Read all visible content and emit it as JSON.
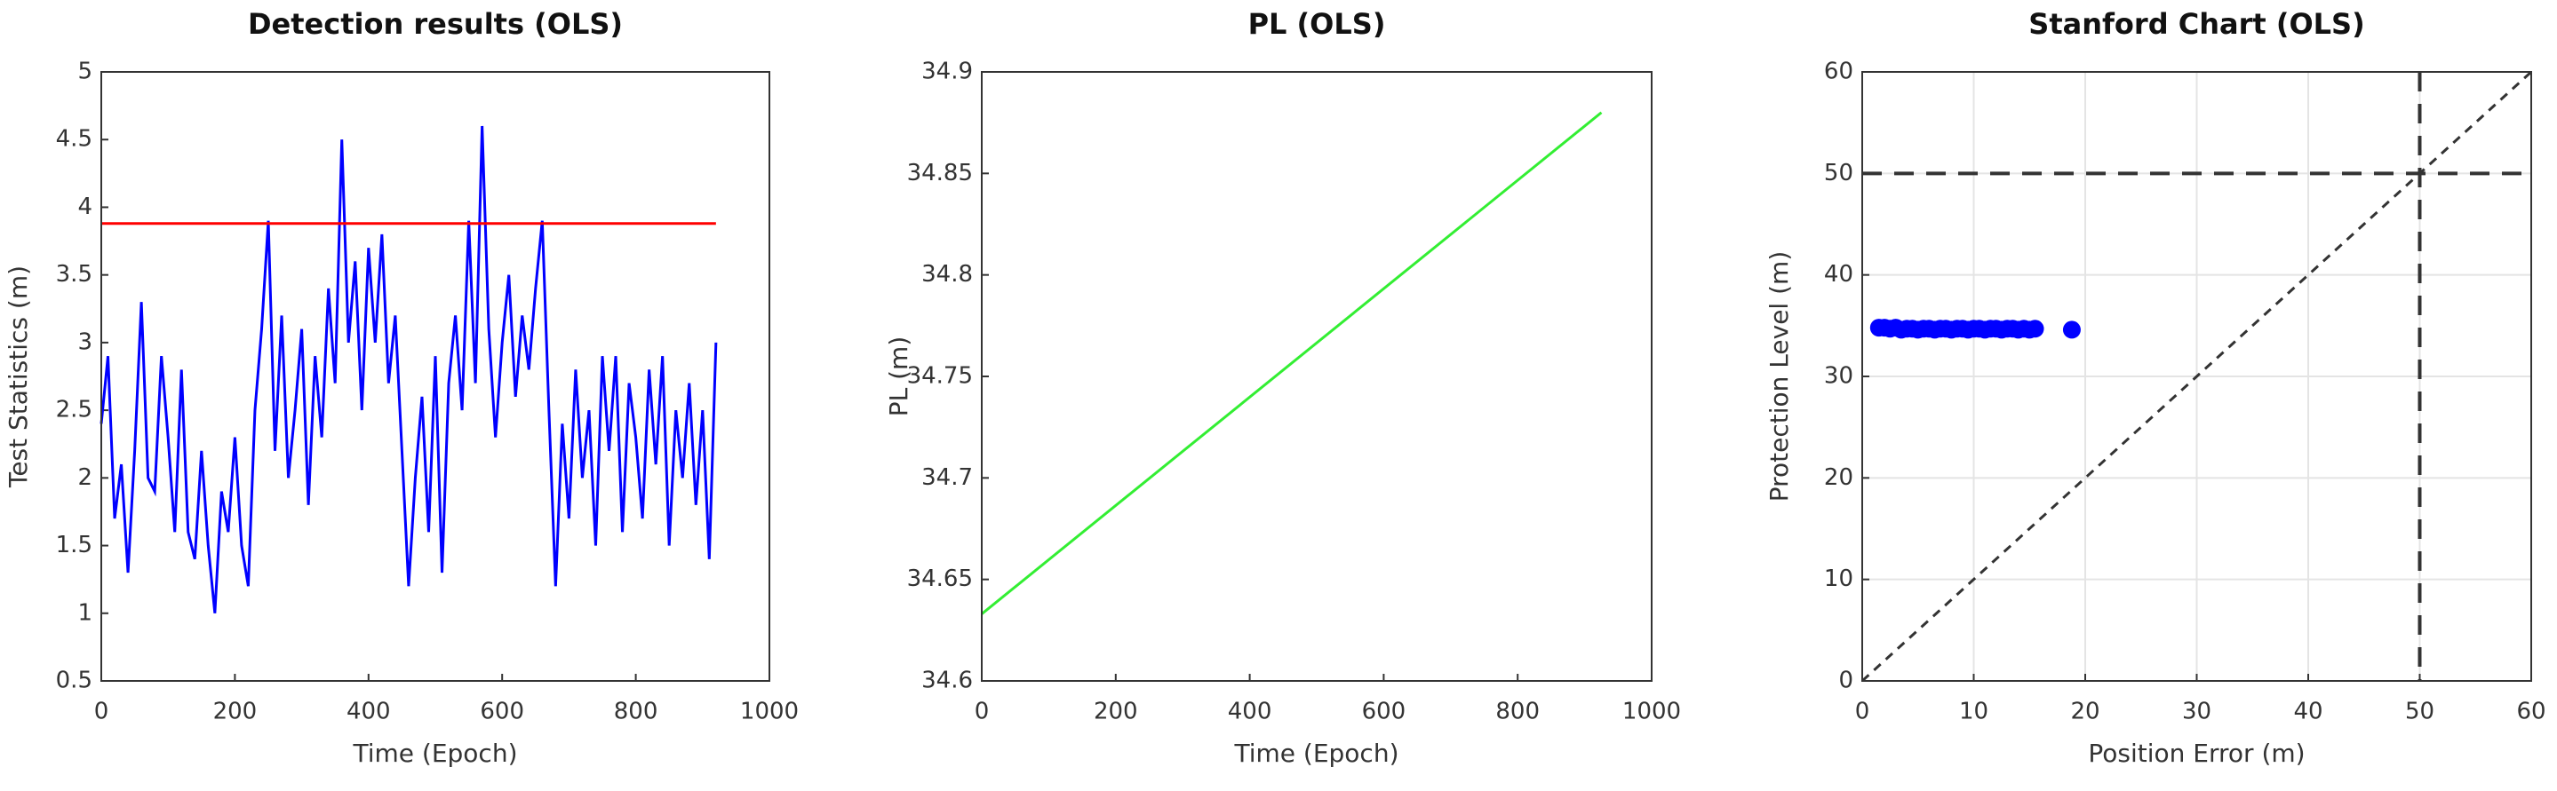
{
  "chart_data": [
    {
      "type": "line",
      "title": "Detection results (OLS)",
      "xlabel": "Time (Epoch)",
      "ylabel": "Test Statistics (m)",
      "xlim": [
        0,
        1000
      ],
      "xticks": [
        0,
        200,
        400,
        600,
        800,
        1000
      ],
      "ylim": [
        0.5,
        5
      ],
      "yticks": [
        0.5,
        1,
        1.5,
        2,
        2.5,
        3,
        3.5,
        4,
        4.5,
        5
      ],
      "grid": false,
      "series": [
        {
          "color": "#0000ff",
          "x": [
            0,
            10,
            20,
            30,
            40,
            50,
            60,
            70,
            80,
            90,
            100,
            110,
            120,
            130,
            140,
            150,
            160,
            170,
            180,
            190,
            200,
            210,
            220,
            230,
            240,
            250,
            260,
            270,
            280,
            290,
            300,
            310,
            320,
            330,
            340,
            350,
            360,
            370,
            380,
            390,
            400,
            410,
            420,
            430,
            440,
            450,
            460,
            470,
            480,
            490,
            500,
            510,
            520,
            530,
            540,
            550,
            560,
            570,
            580,
            590,
            600,
            610,
            620,
            630,
            640,
            650,
            660,
            670,
            680,
            690,
            700,
            710,
            720,
            730,
            740,
            750,
            760,
            770,
            780,
            790,
            800,
            810,
            820,
            830,
            840,
            850,
            860,
            870,
            880,
            890,
            900,
            910,
            920
          ],
          "values": [
            2.4,
            2.9,
            1.7,
            2.1,
            1.3,
            2.2,
            3.3,
            2.0,
            1.9,
            2.9,
            2.3,
            1.6,
            2.8,
            1.6,
            1.4,
            2.2,
            1.5,
            1.0,
            1.9,
            1.6,
            2.3,
            1.5,
            1.2,
            2.5,
            3.1,
            3.9,
            2.2,
            3.2,
            2.0,
            2.5,
            3.1,
            1.8,
            2.9,
            2.3,
            3.4,
            2.7,
            4.5,
            3.0,
            3.6,
            2.5,
            3.7,
            3.0,
            3.8,
            2.7,
            3.2,
            2.2,
            1.2,
            2.0,
            2.6,
            1.6,
            2.9,
            1.3,
            2.7,
            3.2,
            2.5,
            3.9,
            2.7,
            4.6,
            3.1,
            2.3,
            3.0,
            3.5,
            2.6,
            3.2,
            2.8,
            3.4,
            3.9,
            2.5,
            1.2,
            2.4,
            1.7,
            2.8,
            2.0,
            2.5,
            1.5,
            2.9,
            2.2,
            2.9,
            1.6,
            2.7,
            2.3,
            1.7,
            2.8,
            2.1,
            2.9,
            1.5,
            2.5,
            2.0,
            2.7,
            1.8,
            2.5,
            1.4,
            3.0
          ]
        },
        {
          "color": "#ff0000",
          "x": [
            0,
            920
          ],
          "values": [
            3.88,
            3.88
          ]
        }
      ]
    },
    {
      "type": "line",
      "title": "PL (OLS)",
      "xlabel": "Time (Epoch)",
      "ylabel": "PL (m)",
      "xlim": [
        0,
        1000
      ],
      "xticks": [
        0,
        200,
        400,
        600,
        800,
        1000
      ],
      "ylim": [
        34.6,
        34.9
      ],
      "yticks": [
        34.6,
        34.65,
        34.7,
        34.75,
        34.8,
        34.85,
        34.9
      ],
      "grid": false,
      "series": [
        {
          "color": "#33ee33",
          "x": [
            0,
            925
          ],
          "values": [
            34.633,
            34.88
          ]
        }
      ]
    },
    {
      "type": "scatter",
      "title": "Stanford Chart (OLS)",
      "xlabel": "Position Error (m)",
      "ylabel": "Protection Level (m)",
      "xlim": [
        0,
        60
      ],
      "xticks": [
        0,
        10,
        20,
        30,
        40,
        50,
        60
      ],
      "ylim": [
        0,
        60
      ],
      "yticks": [
        0,
        10,
        20,
        30,
        40,
        50,
        60
      ],
      "grid": true,
      "hlines": [
        50
      ],
      "vlines": [
        50
      ],
      "series": [
        {
          "color": "#0000ff",
          "x": [
            1.5,
            2,
            2.5,
            3,
            3.5,
            4,
            4.5,
            5,
            5.5,
            6,
            6.5,
            7,
            7.5,
            8,
            8.5,
            9,
            9.5,
            10,
            10.5,
            11,
            11.5,
            12,
            12.5,
            13,
            13.5,
            14,
            14.5,
            15,
            15.5,
            18.8
          ],
          "values": [
            34.8,
            34.8,
            34.7,
            34.8,
            34.6,
            34.7,
            34.7,
            34.6,
            34.7,
            34.7,
            34.6,
            34.7,
            34.7,
            34.6,
            34.7,
            34.7,
            34.6,
            34.7,
            34.7,
            34.6,
            34.7,
            34.7,
            34.6,
            34.7,
            34.7,
            34.6,
            34.7,
            34.6,
            34.7,
            34.6
          ]
        }
      ]
    }
  ]
}
